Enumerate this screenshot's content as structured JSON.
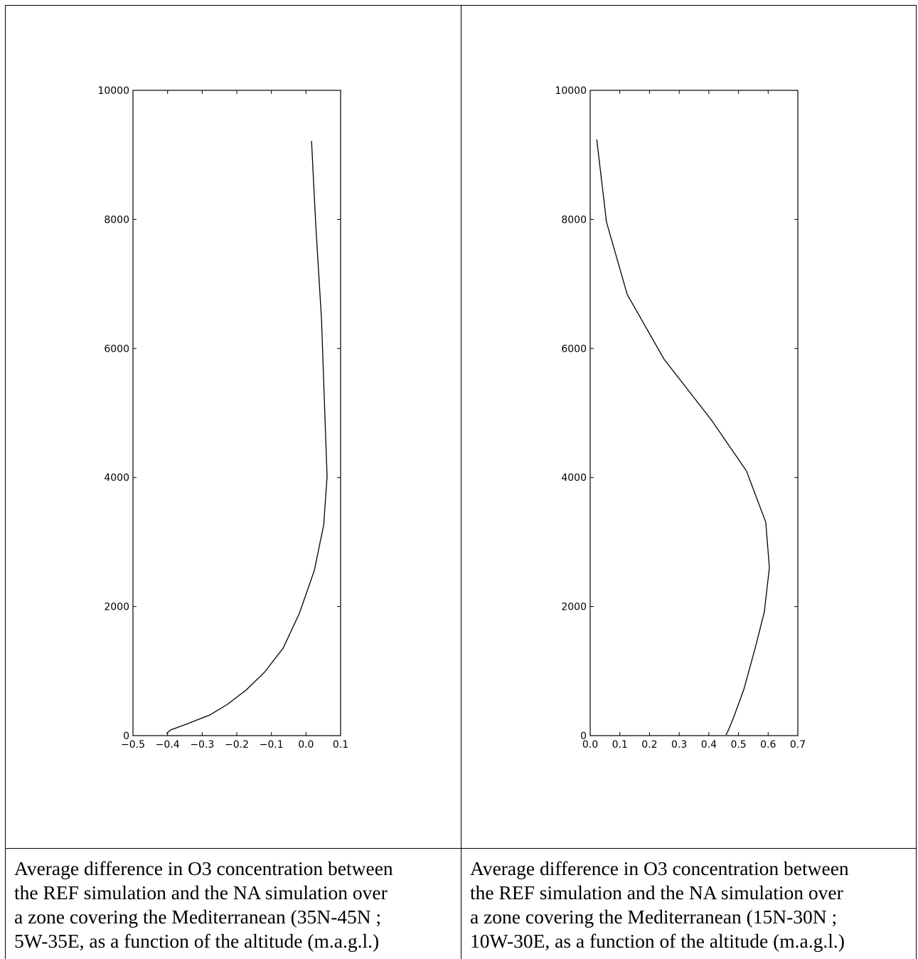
{
  "chart_data": [
    {
      "type": "line",
      "xlim": [
        -0.5,
        0.1
      ],
      "ylim": [
        0,
        10000
      ],
      "xticks": [
        {
          "value": -0.5,
          "label": "−0.5"
        },
        {
          "value": -0.4,
          "label": "−0.4"
        },
        {
          "value": -0.3,
          "label": "−0.3"
        },
        {
          "value": -0.2,
          "label": "−0.2"
        },
        {
          "value": -0.1,
          "label": "−0.1"
        },
        {
          "value": 0,
          "label": "0.0"
        },
        0.1
      ],
      "yticks": [
        0,
        2000,
        4000,
        6000,
        8000,
        10000
      ],
      "color": "#000000",
      "x": [
        0.016,
        0.028,
        0.045,
        0.055,
        0.061,
        0.051,
        0.024,
        -0.019,
        -0.066,
        -0.12,
        -0.173,
        -0.227,
        -0.278,
        -0.346,
        -0.391,
        -0.403
      ],
      "values": [
        9217,
        7927,
        6439,
        4895,
        4013,
        3263,
        2558,
        1896,
        1356,
        981,
        706,
        485,
        320,
        176,
        88,
        33
      ]
    },
    {
      "type": "line",
      "xlim": [
        0,
        0.7
      ],
      "ylim": [
        0,
        10000
      ],
      "xticks": [
        {
          "value": 0,
          "label": "0.0"
        },
        0.1,
        0.2,
        0.3,
        0.4,
        0.5,
        0.6,
        0.7
      ],
      "yticks": [
        0,
        2000,
        4000,
        6000,
        8000,
        10000
      ],
      "color": "#000000",
      "x": [
        0.022,
        0.055,
        0.125,
        0.249,
        0.408,
        0.527,
        0.592,
        0.604,
        0.587,
        0.558,
        0.518,
        0.482,
        0.465,
        0.458
      ],
      "values": [
        9239,
        7960,
        6836,
        5832,
        4895,
        4101,
        3308,
        2602,
        1918,
        1389,
        717,
        265,
        77,
        11
      ]
    }
  ],
  "captions": [
    [
      "Average difference in O3 concentration between",
      "the REF simulation and the NA simulation over",
      "a zone covering the Mediterranean (35N-45N ;",
      "5W-35E, as a function of the altitude (m.a.g.l.)"
    ],
    [
      "Average difference in O3 concentration between",
      "the REF simulation and the NA simulation over",
      "a zone covering the Mediterranean (15N-30N ;",
      "10W-30E, as a function of the altitude (m.a.g.l.)"
    ]
  ]
}
